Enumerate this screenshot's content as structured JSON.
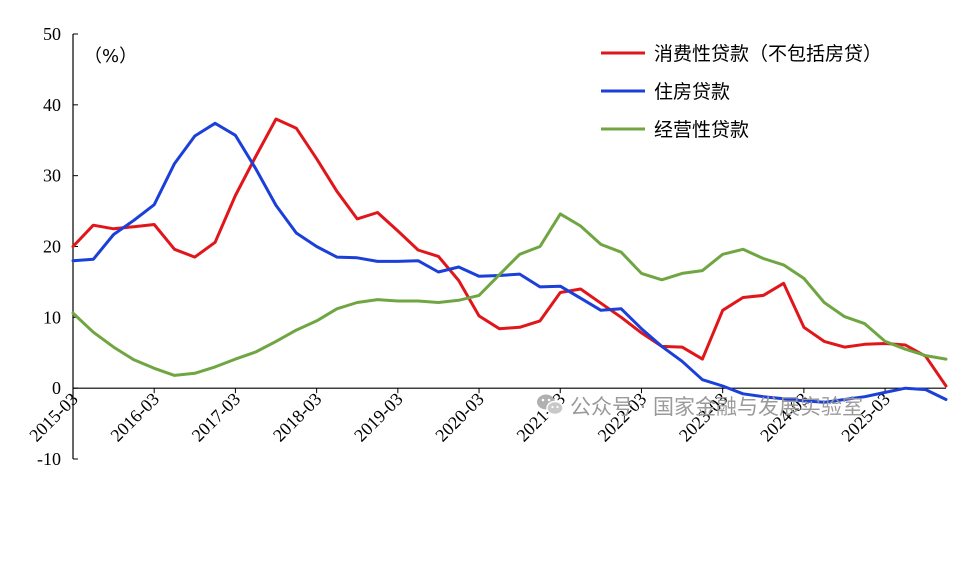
{
  "chart_data": {
    "type": "line",
    "unit_label": "（%）",
    "ylim": [
      -10,
      50
    ],
    "y_ticks": [
      -10,
      0,
      10,
      20,
      30,
      40,
      50
    ],
    "x_tick_labels": [
      "2015-03",
      "2016-03",
      "2017-03",
      "2018-03",
      "2019-03",
      "2020-03",
      "2021-03",
      "2022-03",
      "2023-03",
      "2024-03",
      "2025-03"
    ],
    "x": [
      "2015-03",
      "2015-06",
      "2015-09",
      "2015-12",
      "2016-03",
      "2016-06",
      "2016-09",
      "2016-12",
      "2017-03",
      "2017-06",
      "2017-09",
      "2017-12",
      "2018-03",
      "2018-06",
      "2018-09",
      "2018-12",
      "2019-03",
      "2019-06",
      "2019-09",
      "2019-12",
      "2020-03",
      "2020-06",
      "2020-09",
      "2020-12",
      "2021-03",
      "2021-06",
      "2021-09",
      "2021-12",
      "2022-03",
      "2022-06",
      "2022-09",
      "2022-12",
      "2023-03",
      "2023-06",
      "2023-09",
      "2023-12",
      "2024-03",
      "2024-06",
      "2024-09",
      "2024-12",
      "2025-03",
      "2025-06",
      "2025-09",
      "2025-12"
    ],
    "legend_position": "top-right",
    "grid": false,
    "series": [
      {
        "name": "消费性贷款（不包括房贷）",
        "color": "#e0161b",
        "values": [
          20.0,
          23.0,
          22.5,
          22.8,
          23.1,
          19.6,
          18.5,
          20.6,
          27.2,
          32.7,
          38.0,
          36.7,
          32.4,
          27.8,
          23.9,
          24.8,
          22.2,
          19.5,
          18.6,
          15.2,
          10.2,
          8.4,
          8.6,
          9.5,
          13.5,
          14.0,
          12.0,
          10.0,
          7.8,
          5.9,
          5.8,
          4.1,
          11.0,
          12.8,
          13.1,
          14.8,
          8.6,
          6.6,
          5.8,
          6.2,
          6.3,
          6.1,
          4.5,
          0.3
        ]
      },
      {
        "name": "住房贷款",
        "color": "#1b3fd9",
        "values": [
          18.0,
          18.2,
          21.7,
          23.7,
          25.9,
          31.7,
          35.6,
          37.4,
          35.7,
          31.0,
          25.8,
          21.9,
          20.0,
          18.5,
          18.4,
          17.9,
          17.9,
          18.0,
          16.4,
          17.1,
          15.8,
          15.9,
          16.1,
          14.3,
          14.4,
          12.7,
          11.0,
          11.2,
          8.4,
          5.9,
          3.8,
          1.2,
          0.3,
          -0.8,
          -1.2,
          -1.5,
          -1.8,
          -2.0,
          -1.6,
          -1.2,
          -0.6,
          0.0,
          -0.2,
          -1.6
        ]
      },
      {
        "name": "经营性贷款",
        "color": "#6fa642",
        "values": [
          10.6,
          7.9,
          5.8,
          4.0,
          2.8,
          1.8,
          2.1,
          3.0,
          4.1,
          5.1,
          6.6,
          8.2,
          9.5,
          11.2,
          12.1,
          12.5,
          12.3,
          12.3,
          12.1,
          12.4,
          13.1,
          16.0,
          18.9,
          20.0,
          24.6,
          22.9,
          20.3,
          19.2,
          16.2,
          15.3,
          16.2,
          16.6,
          18.9,
          19.6,
          18.3,
          17.4,
          15.5,
          12.1,
          10.1,
          9.1,
          6.6,
          5.5,
          4.6,
          4.1
        ]
      }
    ]
  },
  "watermark": {
    "text": "公众号 · 国家金融与发展实验室",
    "icon": "wechat-icon"
  }
}
